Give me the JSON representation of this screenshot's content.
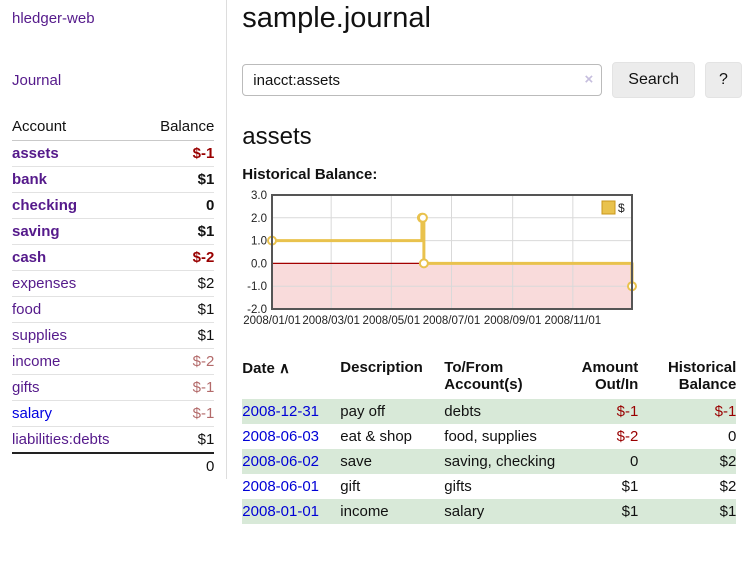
{
  "colors": {
    "link_purple": "#551a8b",
    "link_blue": "#0000e0",
    "negative_strong": "#990000",
    "negative_soft": "#b36a6a",
    "row_stripe_green": "#d8e9d8",
    "chart_gold": "#e9c24d"
  },
  "sidebar": {
    "app_title": "hledger-web",
    "nav_journal": "Journal",
    "account_header": "Account",
    "balance_header": "Balance",
    "total": "0",
    "accounts": [
      {
        "name": "assets",
        "balance": "$-1",
        "depth": 1,
        "bold": true,
        "neg": "strong",
        "link": "purple"
      },
      {
        "name": "bank",
        "balance": "$1",
        "depth": 2,
        "bold": true,
        "neg": "",
        "link": "purple"
      },
      {
        "name": "checking",
        "balance": "0",
        "depth": 3,
        "bold": true,
        "neg": "",
        "link": "purple"
      },
      {
        "name": "saving",
        "balance": "$1",
        "depth": 3,
        "bold": true,
        "neg": "",
        "link": "purple"
      },
      {
        "name": "cash",
        "balance": "$-2",
        "depth": 2,
        "bold": true,
        "neg": "strong",
        "link": "purple"
      },
      {
        "name": "expenses",
        "balance": "$2",
        "depth": 1,
        "bold": false,
        "neg": "",
        "link": "purple"
      },
      {
        "name": "food",
        "balance": "$1",
        "depth": 2,
        "bold": false,
        "neg": "",
        "link": "purple"
      },
      {
        "name": "supplies",
        "balance": "$1",
        "depth": 2,
        "bold": false,
        "neg": "",
        "link": "purple"
      },
      {
        "name": "income",
        "balance": "$-2",
        "depth": 1,
        "bold": false,
        "neg": "soft",
        "link": "purple"
      },
      {
        "name": "gifts",
        "balance": "$-1",
        "depth": 2,
        "bold": false,
        "neg": "soft",
        "link": "purple"
      },
      {
        "name": "salary",
        "balance": "$-1",
        "depth": 2,
        "bold": false,
        "neg": "soft",
        "link": "blue"
      },
      {
        "name": "liabilities:debts",
        "balance": "$1",
        "depth": 1,
        "bold": false,
        "neg": "",
        "link": "purple"
      }
    ]
  },
  "main": {
    "title": "sample.journal",
    "search": {
      "query": "inacct:assets",
      "clear_icon": "×",
      "search_button": "Search",
      "help_button": "?"
    },
    "account_heading": "assets",
    "chart_label": "Historical Balance:"
  },
  "chart_data": {
    "type": "line-step",
    "title": "Historical Balance:",
    "series": [
      {
        "name": "$",
        "color": "#e9c24d",
        "points": [
          {
            "date": "2008-01-01",
            "value": 1
          },
          {
            "date": "2008-06-01",
            "value": 2
          },
          {
            "date": "2008-06-02",
            "value": 2
          },
          {
            "date": "2008-06-03",
            "value": 0
          },
          {
            "date": "2008-12-31",
            "value": -1
          }
        ]
      }
    ],
    "x_range": [
      "2008-01-01",
      "2008-12-31"
    ],
    "ylim": [
      -2,
      3
    ],
    "y_ticks": [
      "3.0",
      "2.0",
      "1.0",
      "0.0",
      "-1.0",
      "-2.0"
    ],
    "x_ticks": [
      {
        "date": "2008-01-01",
        "label": "2008/01/01"
      },
      {
        "date": "2008-03-01",
        "label": "2008/03/01"
      },
      {
        "date": "2008-05-01",
        "label": "2008/05/01"
      },
      {
        "date": "2008-07-01",
        "label": "2008/07/01"
      },
      {
        "date": "2008-09-01",
        "label": "2008/09/01"
      },
      {
        "date": "2008-11-01",
        "label": "2008/11/01"
      }
    ],
    "grid": true,
    "negative_region_color": "#f9dbdb",
    "zero_line_color": "#a40000",
    "legend": {
      "label": "$",
      "swatch_color": "#e9c24d",
      "position": "top-right"
    }
  },
  "register": {
    "headers": {
      "date": "Date",
      "sort_icon": "∧",
      "description": "Description",
      "accounts": "To/From Account(s)",
      "amount": "Amount Out/In",
      "balance": "Historical Balance"
    },
    "rows": [
      {
        "date": "2008-12-31",
        "description": "pay off",
        "accounts": "debts",
        "amount": "$-1",
        "balance": "$-1",
        "amount_neg": true,
        "balance_neg": true
      },
      {
        "date": "2008-06-03",
        "description": "eat & shop",
        "accounts": "food, supplies",
        "amount": "$-2",
        "balance": "0",
        "amount_neg": true,
        "balance_neg": false
      },
      {
        "date": "2008-06-02",
        "description": "save",
        "accounts": "saving, checking",
        "amount": "0",
        "balance": "$2",
        "amount_neg": false,
        "balance_neg": false
      },
      {
        "date": "2008-06-01",
        "description": "gift",
        "accounts": "gifts",
        "amount": "$1",
        "balance": "$2",
        "amount_neg": false,
        "balance_neg": false
      },
      {
        "date": "2008-01-01",
        "description": "income",
        "accounts": "salary",
        "amount": "$1",
        "balance": "$1",
        "amount_neg": false,
        "balance_neg": false
      }
    ]
  }
}
